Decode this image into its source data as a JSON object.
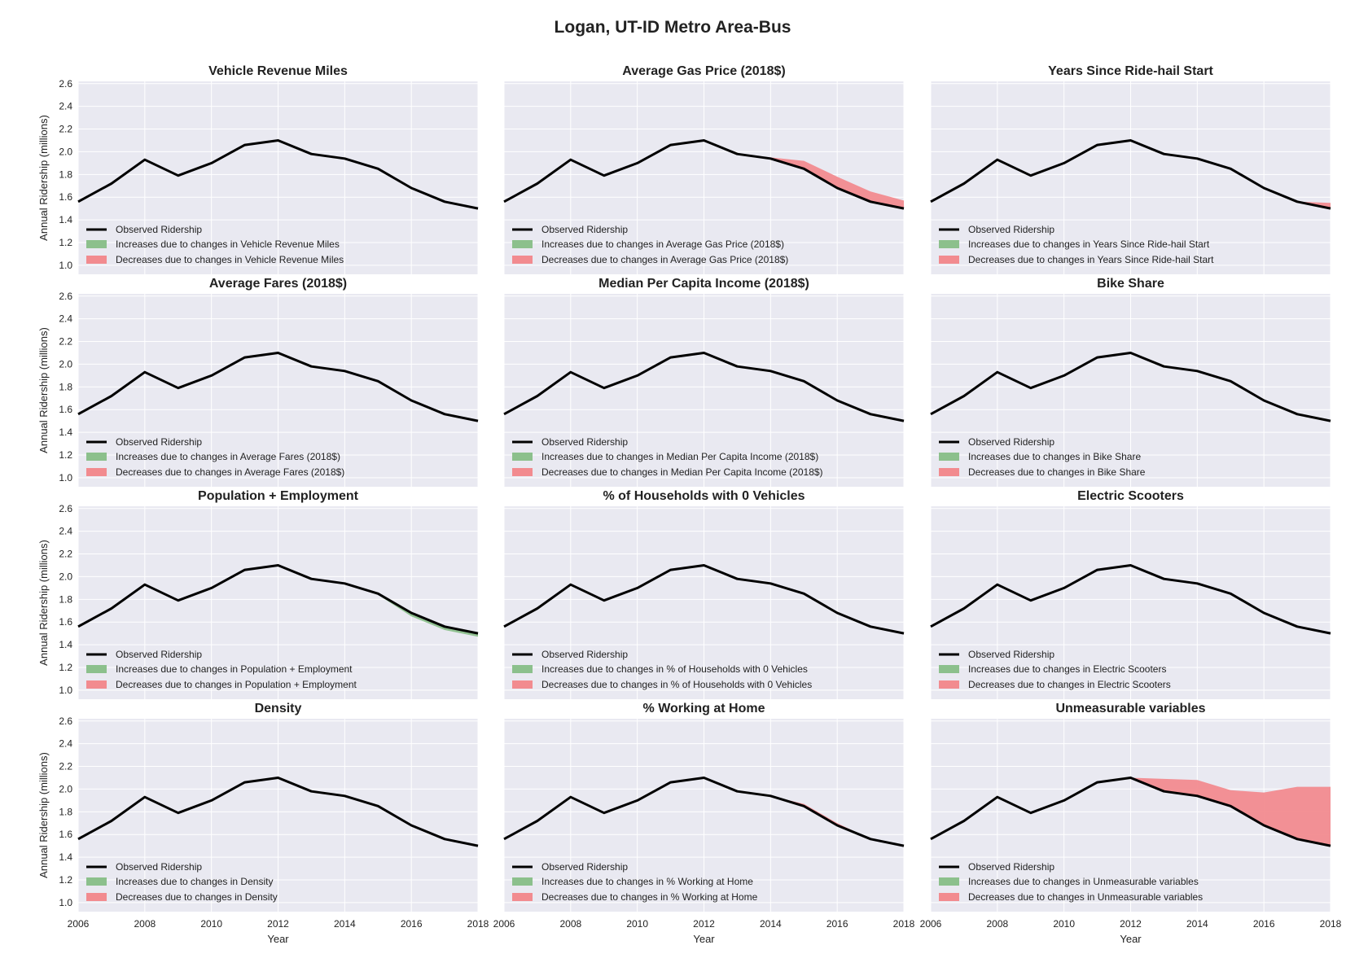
{
  "figure_title": "Logan, UT-ID Metro Area-Bus",
  "colors": {
    "plot_bg": "#e9e9f1",
    "grid": "#ffffff",
    "observed": "#000000",
    "increase": "#8cc08c",
    "decrease": "#f28b8f"
  },
  "chart_data": {
    "type": "area",
    "x": [
      2006,
      2007,
      2008,
      2009,
      2010,
      2011,
      2012,
      2013,
      2014,
      2015,
      2016,
      2017,
      2018
    ],
    "observed": [
      1.56,
      1.72,
      1.93,
      1.79,
      1.9,
      2.06,
      2.1,
      1.98,
      1.94,
      1.85,
      1.68,
      1.56,
      1.5
    ],
    "xlim": [
      2006,
      2018
    ],
    "ylim": [
      0.92,
      2.62
    ],
    "xticks": [
      "2006",
      "2008",
      "2010",
      "2012",
      "2014",
      "2016",
      "2018"
    ],
    "yticks": [
      "1.0",
      "1.2",
      "1.4",
      "1.6",
      "1.8",
      "2.0",
      "2.2",
      "2.4",
      "2.6"
    ],
    "ylabel": "Annual Ridership (millions)",
    "xlabel": "Year",
    "legend_observed": "Observed Ridership",
    "grid": true,
    "legend_position": "lower-left",
    "panels": [
      {
        "title": "Vehicle Revenue Miles",
        "legend_increase": "Increases due to changes in Vehicle Revenue Miles",
        "legend_decrease": "Decreases due to changes in Vehicle Revenue Miles",
        "counterfactual": null,
        "effect": "none"
      },
      {
        "title": "Average Gas Price (2018$)",
        "legend_increase": "Increases due to changes in Average Gas Price (2018$)",
        "legend_decrease": "Decreases due to changes in Average Gas Price (2018$)",
        "counterfactual": [
          1.56,
          1.72,
          1.93,
          1.79,
          1.9,
          2.06,
          2.1,
          1.98,
          1.95,
          1.92,
          1.78,
          1.65,
          1.57
        ],
        "effect": "decrease"
      },
      {
        "title": "Years Since Ride-hail Start",
        "legend_increase": "Increases due to changes in Years Since Ride-hail Start",
        "legend_decrease": "Decreases due to changes in Years Since Ride-hail Start",
        "counterfactual": [
          1.56,
          1.72,
          1.93,
          1.79,
          1.9,
          2.06,
          2.1,
          1.98,
          1.94,
          1.85,
          1.68,
          1.56,
          1.55
        ],
        "effect": "decrease"
      },
      {
        "title": "Average Fares (2018$)",
        "legend_increase": "Increases due to changes in Average Fares (2018$)",
        "legend_decrease": "Decreases due to changes in Average Fares (2018$)",
        "counterfactual": null,
        "effect": "none"
      },
      {
        "title": "Median Per Capita Income (2018$)",
        "legend_increase": "Increases due to changes in Median Per Capita Income (2018$)",
        "legend_decrease": "Decreases due to changes in Median Per Capita Income (2018$)",
        "counterfactual": null,
        "effect": "none"
      },
      {
        "title": "Bike Share",
        "legend_increase": "Increases due to changes in Bike Share",
        "legend_decrease": "Decreases due to changes in Bike Share",
        "counterfactual": null,
        "effect": "none"
      },
      {
        "title": "Population + Employment",
        "legend_increase": "Increases due to changes in Population + Employment",
        "legend_decrease": "Decreases due to changes in Population + Employment",
        "counterfactual": [
          1.56,
          1.72,
          1.93,
          1.79,
          1.9,
          2.06,
          2.1,
          1.98,
          1.94,
          1.84,
          1.65,
          1.53,
          1.47
        ],
        "effect": "increase"
      },
      {
        "title": "% of Households with 0 Vehicles",
        "legend_increase": "Increases due to changes in % of Households with 0 Vehicles",
        "legend_decrease": "Decreases due to changes in % of Households with 0 Vehicles",
        "counterfactual": null,
        "effect": "none"
      },
      {
        "title": "Electric Scooters",
        "legend_increase": "Increases due to changes in Electric Scooters",
        "legend_decrease": "Decreases due to changes in Electric Scooters",
        "counterfactual": null,
        "effect": "none"
      },
      {
        "title": "Density",
        "legend_increase": "Increases due to changes in Density",
        "legend_decrease": "Decreases due to changes in Density",
        "counterfactual": null,
        "effect": "none"
      },
      {
        "title": "% Working at Home",
        "legend_increase": "Increases due to changes in % Working at Home",
        "legend_decrease": "Decreases due to changes in % Working at Home",
        "counterfactual": [
          1.56,
          1.72,
          1.93,
          1.79,
          1.9,
          2.06,
          2.1,
          1.98,
          1.94,
          1.87,
          1.7,
          1.56,
          1.5
        ],
        "effect": "decrease"
      },
      {
        "title": "Unmeasurable variables",
        "legend_increase": "Increases due to changes in Unmeasurable variables",
        "legend_decrease": "Decreases due to changes in Unmeasurable variables",
        "counterfactual": [
          1.56,
          1.72,
          1.93,
          1.79,
          1.9,
          2.06,
          2.1,
          2.09,
          2.08,
          1.99,
          1.97,
          2.02,
          2.02
        ],
        "effect": "decrease"
      }
    ]
  }
}
